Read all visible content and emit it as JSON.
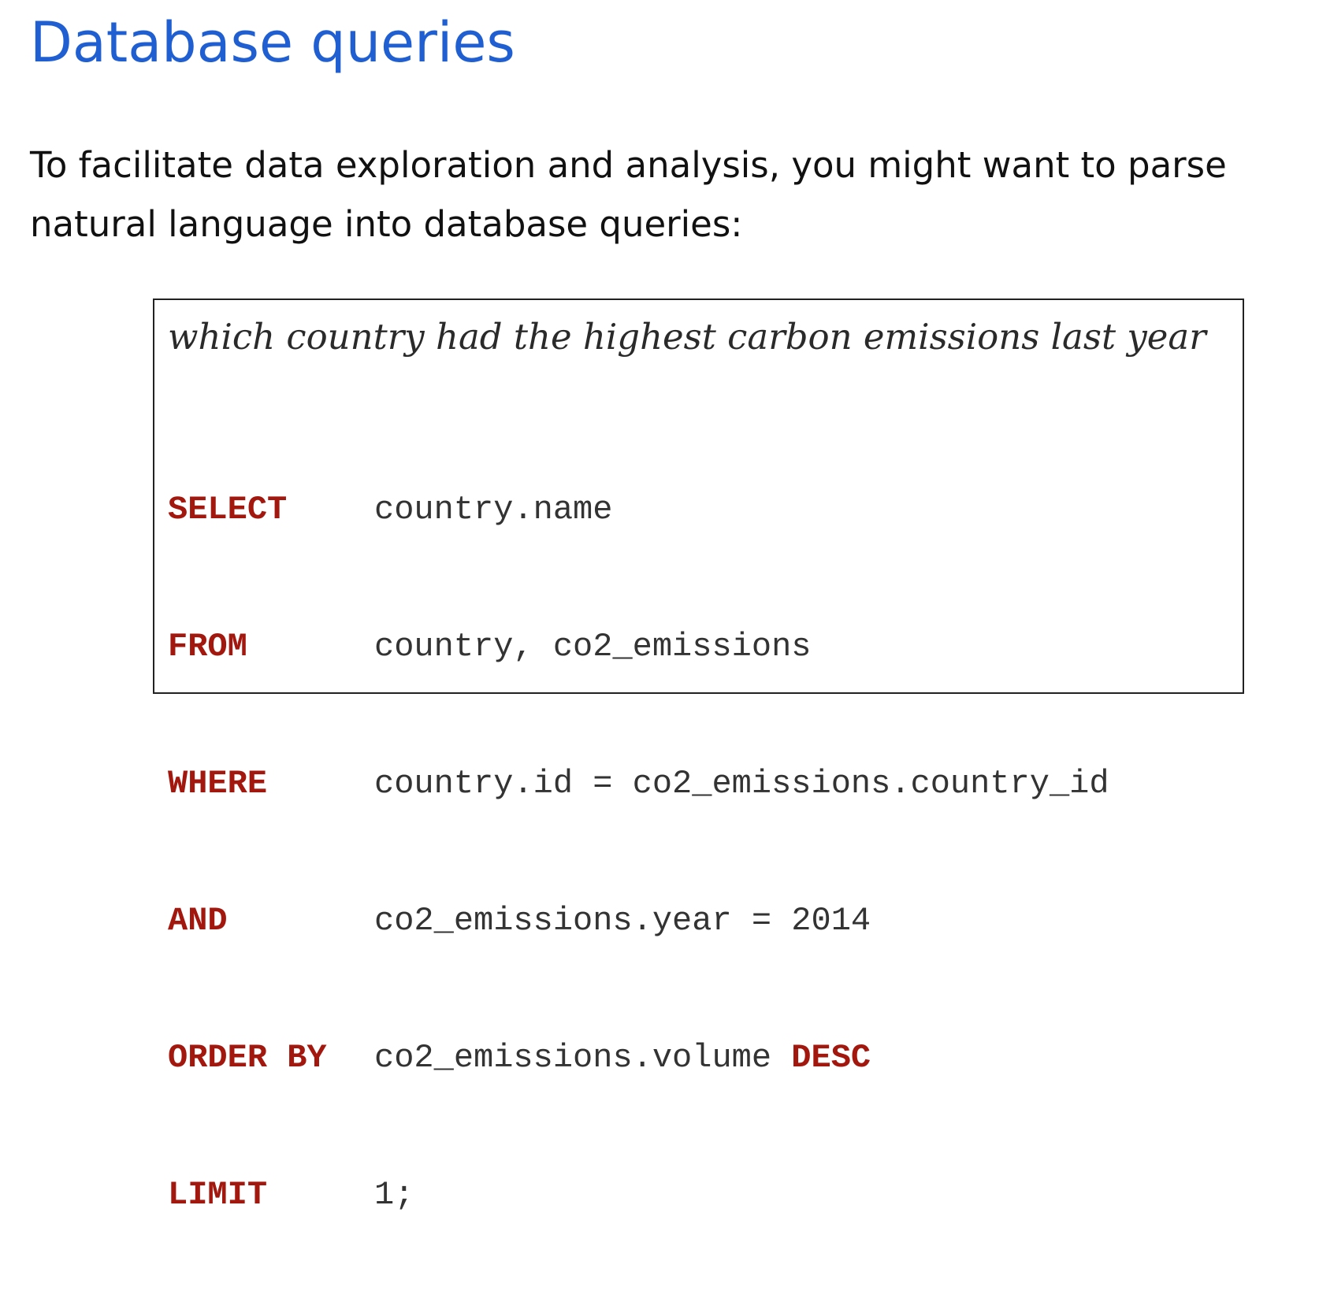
{
  "title": "Database queries",
  "intro": {
    "line1": "To facilitate data exploration and analysis, you might want to parse",
    "line2": "natural language into database queries:"
  },
  "example": {
    "question": "which country had the highest carbon emissions last year",
    "sql": [
      {
        "keyword": "SELECT",
        "expression": "country.name",
        "trailing_keyword": ""
      },
      {
        "keyword": "FROM",
        "expression": "country, co2_emissions",
        "trailing_keyword": ""
      },
      {
        "keyword": "WHERE",
        "expression": "country.id = co2_emissions.country_id",
        "trailing_keyword": ""
      },
      {
        "keyword": "AND",
        "expression": "co2_emissions.year = 2014",
        "trailing_keyword": ""
      },
      {
        "keyword": "ORDER BY",
        "expression": "co2_emissions.volume ",
        "trailing_keyword": "DESC"
      },
      {
        "keyword": "LIMIT",
        "expression": "1;",
        "trailing_keyword": ""
      }
    ]
  },
  "colors": {
    "title": "#1f5fd1",
    "keyword": "#a3180e",
    "code_text": "#333333",
    "body_text": "#111111"
  }
}
